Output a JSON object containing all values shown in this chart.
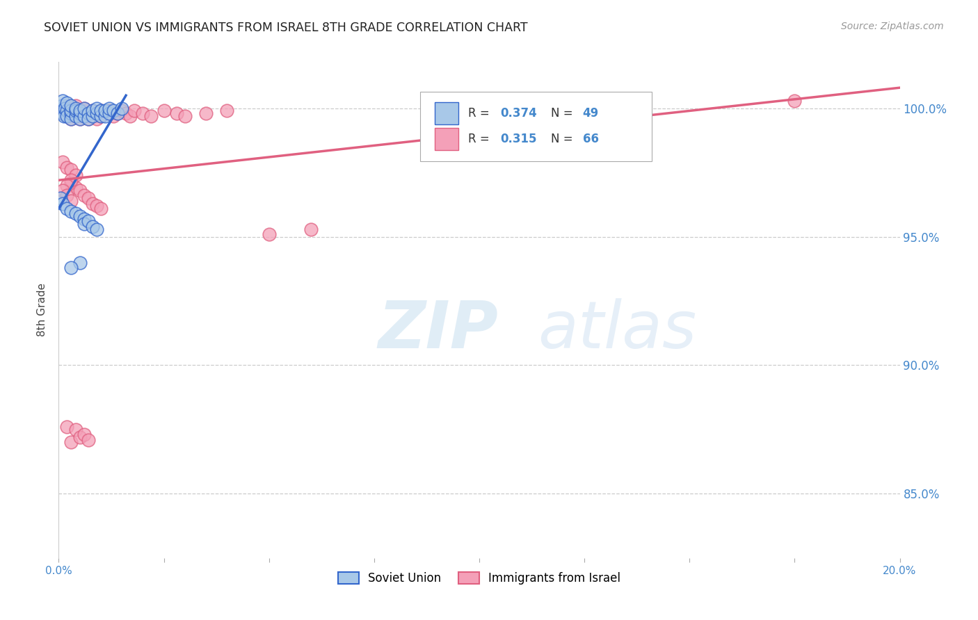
{
  "title": "SOVIET UNION VS IMMIGRANTS FROM ISRAEL 8TH GRADE CORRELATION CHART",
  "source": "Source: ZipAtlas.com",
  "ylabel": "8th Grade",
  "ytick_labels": [
    "100.0%",
    "95.0%",
    "90.0%",
    "85.0%"
  ],
  "ytick_values": [
    1.0,
    0.95,
    0.9,
    0.85
  ],
  "xlim": [
    0.0,
    0.2
  ],
  "ylim": [
    0.825,
    1.018
  ],
  "color_soviet": "#a8c8e8",
  "color_israel": "#f4a0b8",
  "color_line_soviet": "#3366cc",
  "color_line_israel": "#e06080",
  "color_ticks": "#4488cc",
  "color_grid": "#cccccc",
  "su_x": [
    0.0005,
    0.0008,
    0.001,
    0.001,
    0.0012,
    0.0015,
    0.002,
    0.002,
    0.002,
    0.003,
    0.003,
    0.003,
    0.003,
    0.004,
    0.004,
    0.004,
    0.005,
    0.005,
    0.005,
    0.006,
    0.006,
    0.007,
    0.007,
    0.008,
    0.008,
    0.009,
    0.009,
    0.01,
    0.01,
    0.011,
    0.011,
    0.012,
    0.012,
    0.013,
    0.014,
    0.015,
    0.0005,
    0.001,
    0.002,
    0.003,
    0.004,
    0.005,
    0.006,
    0.006,
    0.007,
    0.008,
    0.009,
    0.005,
    0.003
  ],
  "su_y": [
    0.999,
    1.001,
    0.998,
    1.003,
    0.997,
    1.0,
    0.999,
    0.997,
    1.002,
    0.998,
    0.996,
    0.999,
    1.001,
    0.997,
    0.999,
    1.0,
    0.998,
    0.996,
    0.999,
    0.997,
    1.0,
    0.998,
    0.996,
    0.997,
    0.999,
    0.998,
    1.0,
    0.997,
    0.999,
    0.997,
    0.999,
    0.998,
    1.0,
    0.999,
    0.998,
    1.0,
    0.965,
    0.963,
    0.961,
    0.96,
    0.959,
    0.958,
    0.957,
    0.955,
    0.956,
    0.954,
    0.953,
    0.94,
    0.938
  ],
  "isr_x": [
    0.0005,
    0.001,
    0.001,
    0.002,
    0.002,
    0.002,
    0.003,
    0.003,
    0.003,
    0.004,
    0.004,
    0.004,
    0.005,
    0.005,
    0.006,
    0.006,
    0.006,
    0.007,
    0.007,
    0.008,
    0.008,
    0.009,
    0.009,
    0.01,
    0.01,
    0.011,
    0.012,
    0.013,
    0.014,
    0.015,
    0.016,
    0.017,
    0.018,
    0.02,
    0.022,
    0.025,
    0.028,
    0.03,
    0.035,
    0.04,
    0.05,
    0.06,
    0.003,
    0.004,
    0.005,
    0.006,
    0.007,
    0.008,
    0.009,
    0.01,
    0.001,
    0.002,
    0.003,
    0.004,
    0.003,
    0.002,
    0.001,
    0.002,
    0.003,
    0.175,
    0.002,
    0.003,
    0.004,
    0.005,
    0.006,
    0.007
  ],
  "isr_y": [
    0.999,
    1.0,
    0.998,
    0.999,
    1.001,
    0.997,
    0.998,
    1.0,
    0.996,
    0.999,
    0.997,
    1.001,
    0.998,
    0.996,
    0.999,
    0.997,
    1.0,
    0.998,
    0.996,
    0.997,
    0.999,
    0.998,
    0.996,
    0.997,
    0.999,
    0.998,
    0.999,
    0.997,
    0.998,
    0.999,
    0.998,
    0.997,
    0.999,
    0.998,
    0.997,
    0.999,
    0.998,
    0.997,
    0.998,
    0.999,
    0.951,
    0.953,
    0.971,
    0.969,
    0.968,
    0.966,
    0.965,
    0.963,
    0.962,
    0.961,
    0.979,
    0.977,
    0.976,
    0.974,
    0.972,
    0.97,
    0.968,
    0.966,
    0.964,
    1.003,
    0.876,
    0.87,
    0.875,
    0.872,
    0.873,
    0.871
  ],
  "su_line_x": [
    0.0,
    0.016
  ],
  "su_line_y": [
    0.961,
    1.005
  ],
  "isr_line_x": [
    0.0,
    0.2
  ],
  "isr_line_y": [
    0.972,
    1.008
  ]
}
